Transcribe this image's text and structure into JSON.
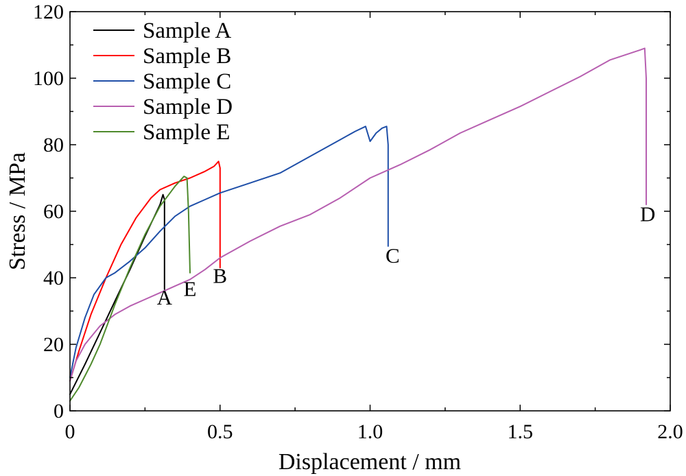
{
  "chart_data": {
    "type": "line",
    "xlabel": "Displacement / mm",
    "ylabel": "Stress / MPa",
    "xlim": [
      0,
      2.0
    ],
    "ylim": [
      0,
      120
    ],
    "xticks": [
      0,
      0.5,
      1.0,
      1.5,
      2.0
    ],
    "xtick_labels": [
      "0",
      "0.5",
      "1.0",
      "1.5",
      "2.0"
    ],
    "yticks": [
      0,
      20,
      40,
      60,
      80,
      100,
      120
    ],
    "ytick_labels": [
      "0",
      "20",
      "40",
      "60",
      "80",
      "100",
      "120"
    ],
    "x_minor_step": 0.25,
    "y_minor_step": 10,
    "grid": false,
    "legend_position": "top-left",
    "series": [
      {
        "name": "Sample A",
        "color": "#000000",
        "end_label": "A",
        "points": [
          [
            0,
            5
          ],
          [
            0.05,
            14
          ],
          [
            0.1,
            23.5
          ],
          [
            0.15,
            33
          ],
          [
            0.2,
            42.5
          ],
          [
            0.25,
            52.5
          ],
          [
            0.3,
            62
          ],
          [
            0.31,
            65
          ],
          [
            0.315,
            63.5
          ],
          [
            0.315,
            36.5
          ]
        ]
      },
      {
        "name": "Sample B",
        "color": "#ff0000",
        "end_label": "B",
        "points": [
          [
            0,
            9
          ],
          [
            0.03,
            18
          ],
          [
            0.07,
            29
          ],
          [
            0.12,
            40
          ],
          [
            0.17,
            50
          ],
          [
            0.22,
            58
          ],
          [
            0.27,
            64
          ],
          [
            0.3,
            66.5
          ],
          [
            0.35,
            68.5
          ],
          [
            0.4,
            70
          ],
          [
            0.45,
            72
          ],
          [
            0.48,
            73.5
          ],
          [
            0.495,
            75
          ],
          [
            0.5,
            73
          ],
          [
            0.5,
            43
          ]
        ]
      },
      {
        "name": "Sample C",
        "color": "#1f4fa8",
        "end_label": "C",
        "points": [
          [
            0,
            10
          ],
          [
            0.02,
            19
          ],
          [
            0.05,
            28
          ],
          [
            0.08,
            35
          ],
          [
            0.12,
            40
          ],
          [
            0.15,
            41.5
          ],
          [
            0.2,
            45
          ],
          [
            0.25,
            49
          ],
          [
            0.3,
            54
          ],
          [
            0.35,
            58.5
          ],
          [
            0.4,
            61.5
          ],
          [
            0.45,
            63.5
          ],
          [
            0.5,
            65.5
          ],
          [
            0.6,
            68.5
          ],
          [
            0.7,
            71.5
          ],
          [
            0.8,
            76.5
          ],
          [
            0.9,
            81.5
          ],
          [
            0.95,
            84
          ],
          [
            0.985,
            85.5
          ],
          [
            0.99,
            84
          ],
          [
            1.0,
            81
          ],
          [
            1.02,
            83.5
          ],
          [
            1.04,
            85
          ],
          [
            1.055,
            85.5
          ],
          [
            1.06,
            80
          ],
          [
            1.06,
            49.5
          ]
        ]
      },
      {
        "name": "Sample D",
        "color": "#b75fb0",
        "end_label": "D",
        "points": [
          [
            0,
            9
          ],
          [
            0.02,
            15
          ],
          [
            0.05,
            20
          ],
          [
            0.1,
            25.5
          ],
          [
            0.15,
            29
          ],
          [
            0.2,
            31.5
          ],
          [
            0.25,
            33.5
          ],
          [
            0.3,
            35.5
          ],
          [
            0.35,
            37.5
          ],
          [
            0.4,
            39.5
          ],
          [
            0.45,
            42.5
          ],
          [
            0.5,
            46
          ],
          [
            0.6,
            51
          ],
          [
            0.7,
            55.5
          ],
          [
            0.8,
            59
          ],
          [
            0.9,
            64
          ],
          [
            1.0,
            70
          ],
          [
            1.1,
            74
          ],
          [
            1.2,
            78.5
          ],
          [
            1.3,
            83.5
          ],
          [
            1.4,
            87.5
          ],
          [
            1.5,
            91.5
          ],
          [
            1.6,
            96
          ],
          [
            1.7,
            100.5
          ],
          [
            1.8,
            105.5
          ],
          [
            1.9,
            108.5
          ],
          [
            1.915,
            109
          ],
          [
            1.92,
            100
          ],
          [
            1.92,
            62
          ]
        ]
      },
      {
        "name": "Sample E",
        "color": "#4e8a2c",
        "end_label": "E",
        "points": [
          [
            0,
            3
          ],
          [
            0.03,
            7
          ],
          [
            0.07,
            14
          ],
          [
            0.1,
            20
          ],
          [
            0.15,
            32
          ],
          [
            0.2,
            43
          ],
          [
            0.25,
            53
          ],
          [
            0.3,
            61.5
          ],
          [
            0.35,
            67.5
          ],
          [
            0.38,
            70.5
          ],
          [
            0.39,
            70
          ],
          [
            0.395,
            60
          ],
          [
            0.4,
            41.5
          ]
        ]
      }
    ],
    "end_label_positions": [
      {
        "label": "A",
        "x": 0.315,
        "y": 32
      },
      {
        "label": "B",
        "x": 0.5,
        "y": 38.5
      },
      {
        "label": "C",
        "x": 1.075,
        "y": 44.5
      },
      {
        "label": "D",
        "x": 1.925,
        "y": 57
      },
      {
        "label": "E",
        "x": 0.4,
        "y": 34.5
      }
    ]
  }
}
